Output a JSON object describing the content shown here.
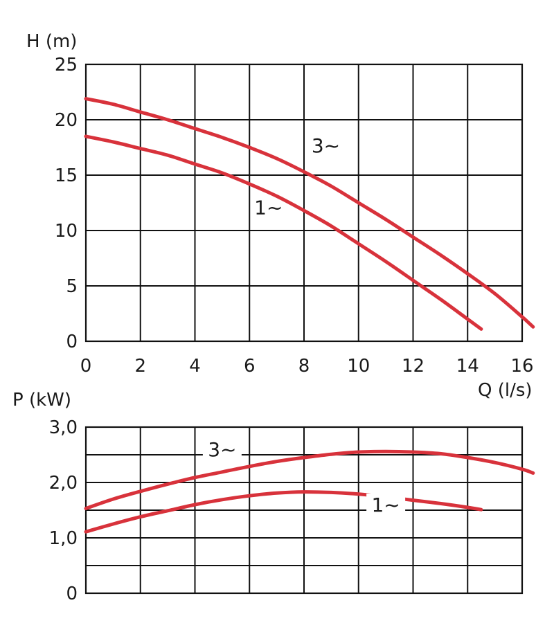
{
  "chart_data": [
    {
      "type": "line",
      "ylabel": "H (m)",
      "xlabel": "Q (l/s)",
      "xlim": [
        0,
        16
      ],
      "ylim": [
        0,
        25
      ],
      "x_ticks": [
        "0",
        "2",
        "4",
        "6",
        "8",
        "10",
        "12",
        "14",
        "16"
      ],
      "y_ticks": [
        "0",
        "5",
        "10",
        "15",
        "20",
        "25"
      ],
      "grid": true,
      "series": [
        {
          "name": "3~",
          "color": "#d8323b",
          "x": [
            0,
            1,
            2,
            3,
            4,
            5,
            6,
            7,
            8,
            9,
            10,
            11,
            12,
            13,
            14,
            15,
            16,
            16.4
          ],
          "y": [
            21.9,
            21.4,
            20.7,
            20.0,
            19.2,
            18.4,
            17.5,
            16.5,
            15.3,
            14.0,
            12.5,
            11.0,
            9.4,
            7.8,
            6.1,
            4.3,
            2.2,
            1.3
          ]
        },
        {
          "name": "1~",
          "color": "#d8323b",
          "x": [
            0,
            1,
            2,
            3,
            4,
            5,
            6,
            7,
            8,
            9,
            10,
            11,
            12,
            13,
            14,
            14.5
          ],
          "y": [
            18.5,
            18.0,
            17.4,
            16.8,
            16.0,
            15.2,
            14.2,
            13.1,
            11.8,
            10.4,
            8.8,
            7.2,
            5.5,
            3.8,
            2.0,
            1.1
          ]
        }
      ],
      "annotations": [
        {
          "text": "3~",
          "x": 8.8,
          "y": 17.2
        },
        {
          "text": "1~",
          "x": 6.7,
          "y": 11.6
        }
      ]
    },
    {
      "type": "line",
      "ylabel": "P (kW)",
      "xlim": [
        0,
        16
      ],
      "ylim": [
        0,
        3
      ],
      "y_ticks": [
        "0",
        "1,0",
        "2,0",
        "3,0"
      ],
      "y_grid_step": 0.5,
      "grid": true,
      "series": [
        {
          "name": "3~",
          "color": "#d8323b",
          "x": [
            0,
            1,
            2,
            3,
            4,
            5,
            6,
            7,
            8,
            9,
            10,
            11,
            12,
            13,
            14,
            15,
            16,
            16.4
          ],
          "y": [
            1.53,
            1.7,
            1.84,
            1.97,
            2.09,
            2.19,
            2.29,
            2.38,
            2.45,
            2.51,
            2.55,
            2.56,
            2.55,
            2.52,
            2.45,
            2.36,
            2.24,
            2.17
          ]
        },
        {
          "name": "1~",
          "color": "#d8323b",
          "x": [
            0,
            1,
            2,
            3,
            4,
            5,
            6,
            7,
            8,
            9,
            10,
            11,
            12,
            13,
            14,
            14.5
          ],
          "y": [
            1.11,
            1.25,
            1.38,
            1.49,
            1.6,
            1.69,
            1.76,
            1.81,
            1.83,
            1.82,
            1.79,
            1.74,
            1.68,
            1.62,
            1.55,
            1.51
          ]
        }
      ],
      "annotations": [
        {
          "text": "3~",
          "x": 5,
          "y": 2.5
        },
        {
          "text": "1~",
          "x": 11,
          "y": 1.5
        }
      ]
    }
  ]
}
